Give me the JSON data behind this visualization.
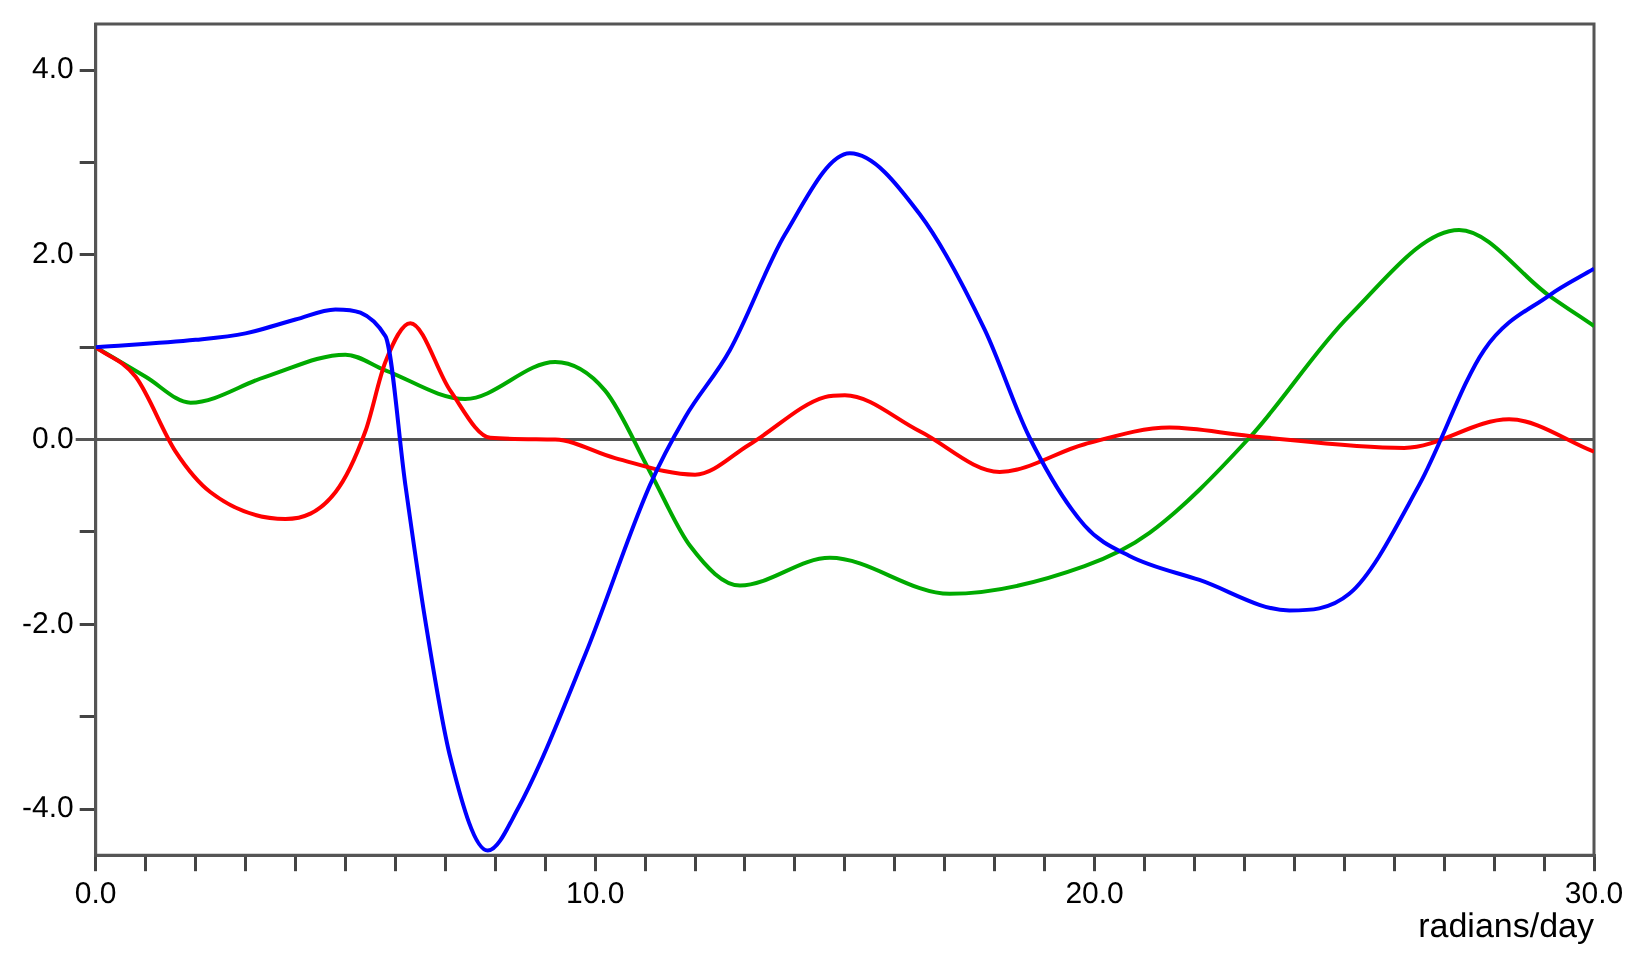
{
  "chart_data": {
    "type": "line",
    "xlabel": "radians/day",
    "xlim": [
      0,
      30
    ],
    "ylim": [
      -4.5,
      4.5
    ],
    "xticks": [
      {
        "value": 0,
        "label": "0.0"
      },
      {
        "value": 1,
        "label": null
      },
      {
        "value": 2,
        "label": null
      },
      {
        "value": 3,
        "label": null
      },
      {
        "value": 4,
        "label": null
      },
      {
        "value": 5,
        "label": null
      },
      {
        "value": 6,
        "label": null
      },
      {
        "value": 7,
        "label": null
      },
      {
        "value": 8,
        "label": null
      },
      {
        "value": 9,
        "label": null
      },
      {
        "value": 10,
        "label": "10.0"
      },
      {
        "value": 11,
        "label": null
      },
      {
        "value": 12,
        "label": null
      },
      {
        "value": 13,
        "label": null
      },
      {
        "value": 14,
        "label": null
      },
      {
        "value": 15,
        "label": null
      },
      {
        "value": 16,
        "label": null
      },
      {
        "value": 17,
        "label": null
      },
      {
        "value": 18,
        "label": null
      },
      {
        "value": 19,
        "label": null
      },
      {
        "value": 20,
        "label": "20.0"
      },
      {
        "value": 21,
        "label": null
      },
      {
        "value": 22,
        "label": null
      },
      {
        "value": 23,
        "label": null
      },
      {
        "value": 24,
        "label": null
      },
      {
        "value": 25,
        "label": null
      },
      {
        "value": 26,
        "label": null
      },
      {
        "value": 27,
        "label": null
      },
      {
        "value": 28,
        "label": null
      },
      {
        "value": 29,
        "label": null
      },
      {
        "value": 30,
        "label": "30.0"
      }
    ],
    "yticks": [
      {
        "value": -4,
        "label": "-4.0"
      },
      {
        "value": -3,
        "label": null
      },
      {
        "value": -2,
        "label": "-2.0"
      },
      {
        "value": -1,
        "label": null
      },
      {
        "value": 0,
        "label": "0.0"
      },
      {
        "value": 1,
        "label": null
      },
      {
        "value": 2,
        "label": "2.0"
      },
      {
        "value": 3,
        "label": null
      },
      {
        "value": 4,
        "label": "4.0"
      }
    ],
    "marker": "none",
    "ref_lines": [
      {
        "axis": "y",
        "value": 0,
        "color": "#555555"
      }
    ],
    "series": [
      {
        "color": "#0000ff",
        "x": [
          0,
          2,
          3,
          4,
          4.8,
          5.8,
          6.2,
          6.6,
          7.1,
          7.85,
          8.45,
          9.8,
          11.1,
          11.8,
          12.7,
          13.8,
          15.1,
          16.5,
          17.8,
          18.7,
          19.8,
          20.7,
          22.1,
          23.9,
          25.1,
          26.5,
          27.8,
          29.1,
          30
        ],
        "values": [
          1.0,
          1.08,
          1.15,
          1.3,
          1.41,
          1.12,
          -0.49,
          -1.96,
          -3.44,
          -4.45,
          -4.0,
          -2.33,
          -0.49,
          0.24,
          0.97,
          2.22,
          3.1,
          2.44,
          1.19,
          0.02,
          -0.93,
          -1.26,
          -1.52,
          -1.85,
          -1.67,
          -0.49,
          0.97,
          1.56,
          1.85
        ]
      },
      {
        "color": "#ff0000",
        "x": [
          0,
          0.8,
          1.6,
          2.3,
          3.8,
          4.8,
          5.4,
          5.8,
          6.3,
          7.1,
          7.9,
          9.2,
          10.4,
          12,
          13.1,
          14.6,
          15,
          16.5,
          18.1,
          19.8,
          21.5,
          23.1,
          26.2,
          28.3,
          30
        ],
        "values": [
          1.0,
          0.68,
          -0.13,
          -0.57,
          -0.86,
          -0.57,
          0.09,
          0.84,
          1.26,
          0.53,
          0.02,
          0.0,
          -0.2,
          -0.38,
          -0.05,
          0.46,
          0.48,
          0.09,
          -0.35,
          -0.05,
          0.13,
          0.04,
          -0.09,
          0.22,
          -0.13
        ]
      },
      {
        "color": "#00aa00",
        "x": [
          0,
          1,
          1.9,
          3.4,
          5,
          5.8,
          7.4,
          9.2,
          10.2,
          11.1,
          11.9,
          12.9,
          14.7,
          17.1,
          19.8,
          21.1,
          23.1,
          25.1,
          27.3,
          29.1,
          30
        ],
        "values": [
          1.0,
          0.68,
          0.4,
          0.68,
          0.92,
          0.75,
          0.44,
          0.84,
          0.53,
          -0.35,
          -1.15,
          -1.58,
          -1.28,
          -1.67,
          -1.37,
          -1.01,
          0.02,
          1.34,
          2.27,
          1.56,
          1.23
        ]
      }
    ]
  }
}
